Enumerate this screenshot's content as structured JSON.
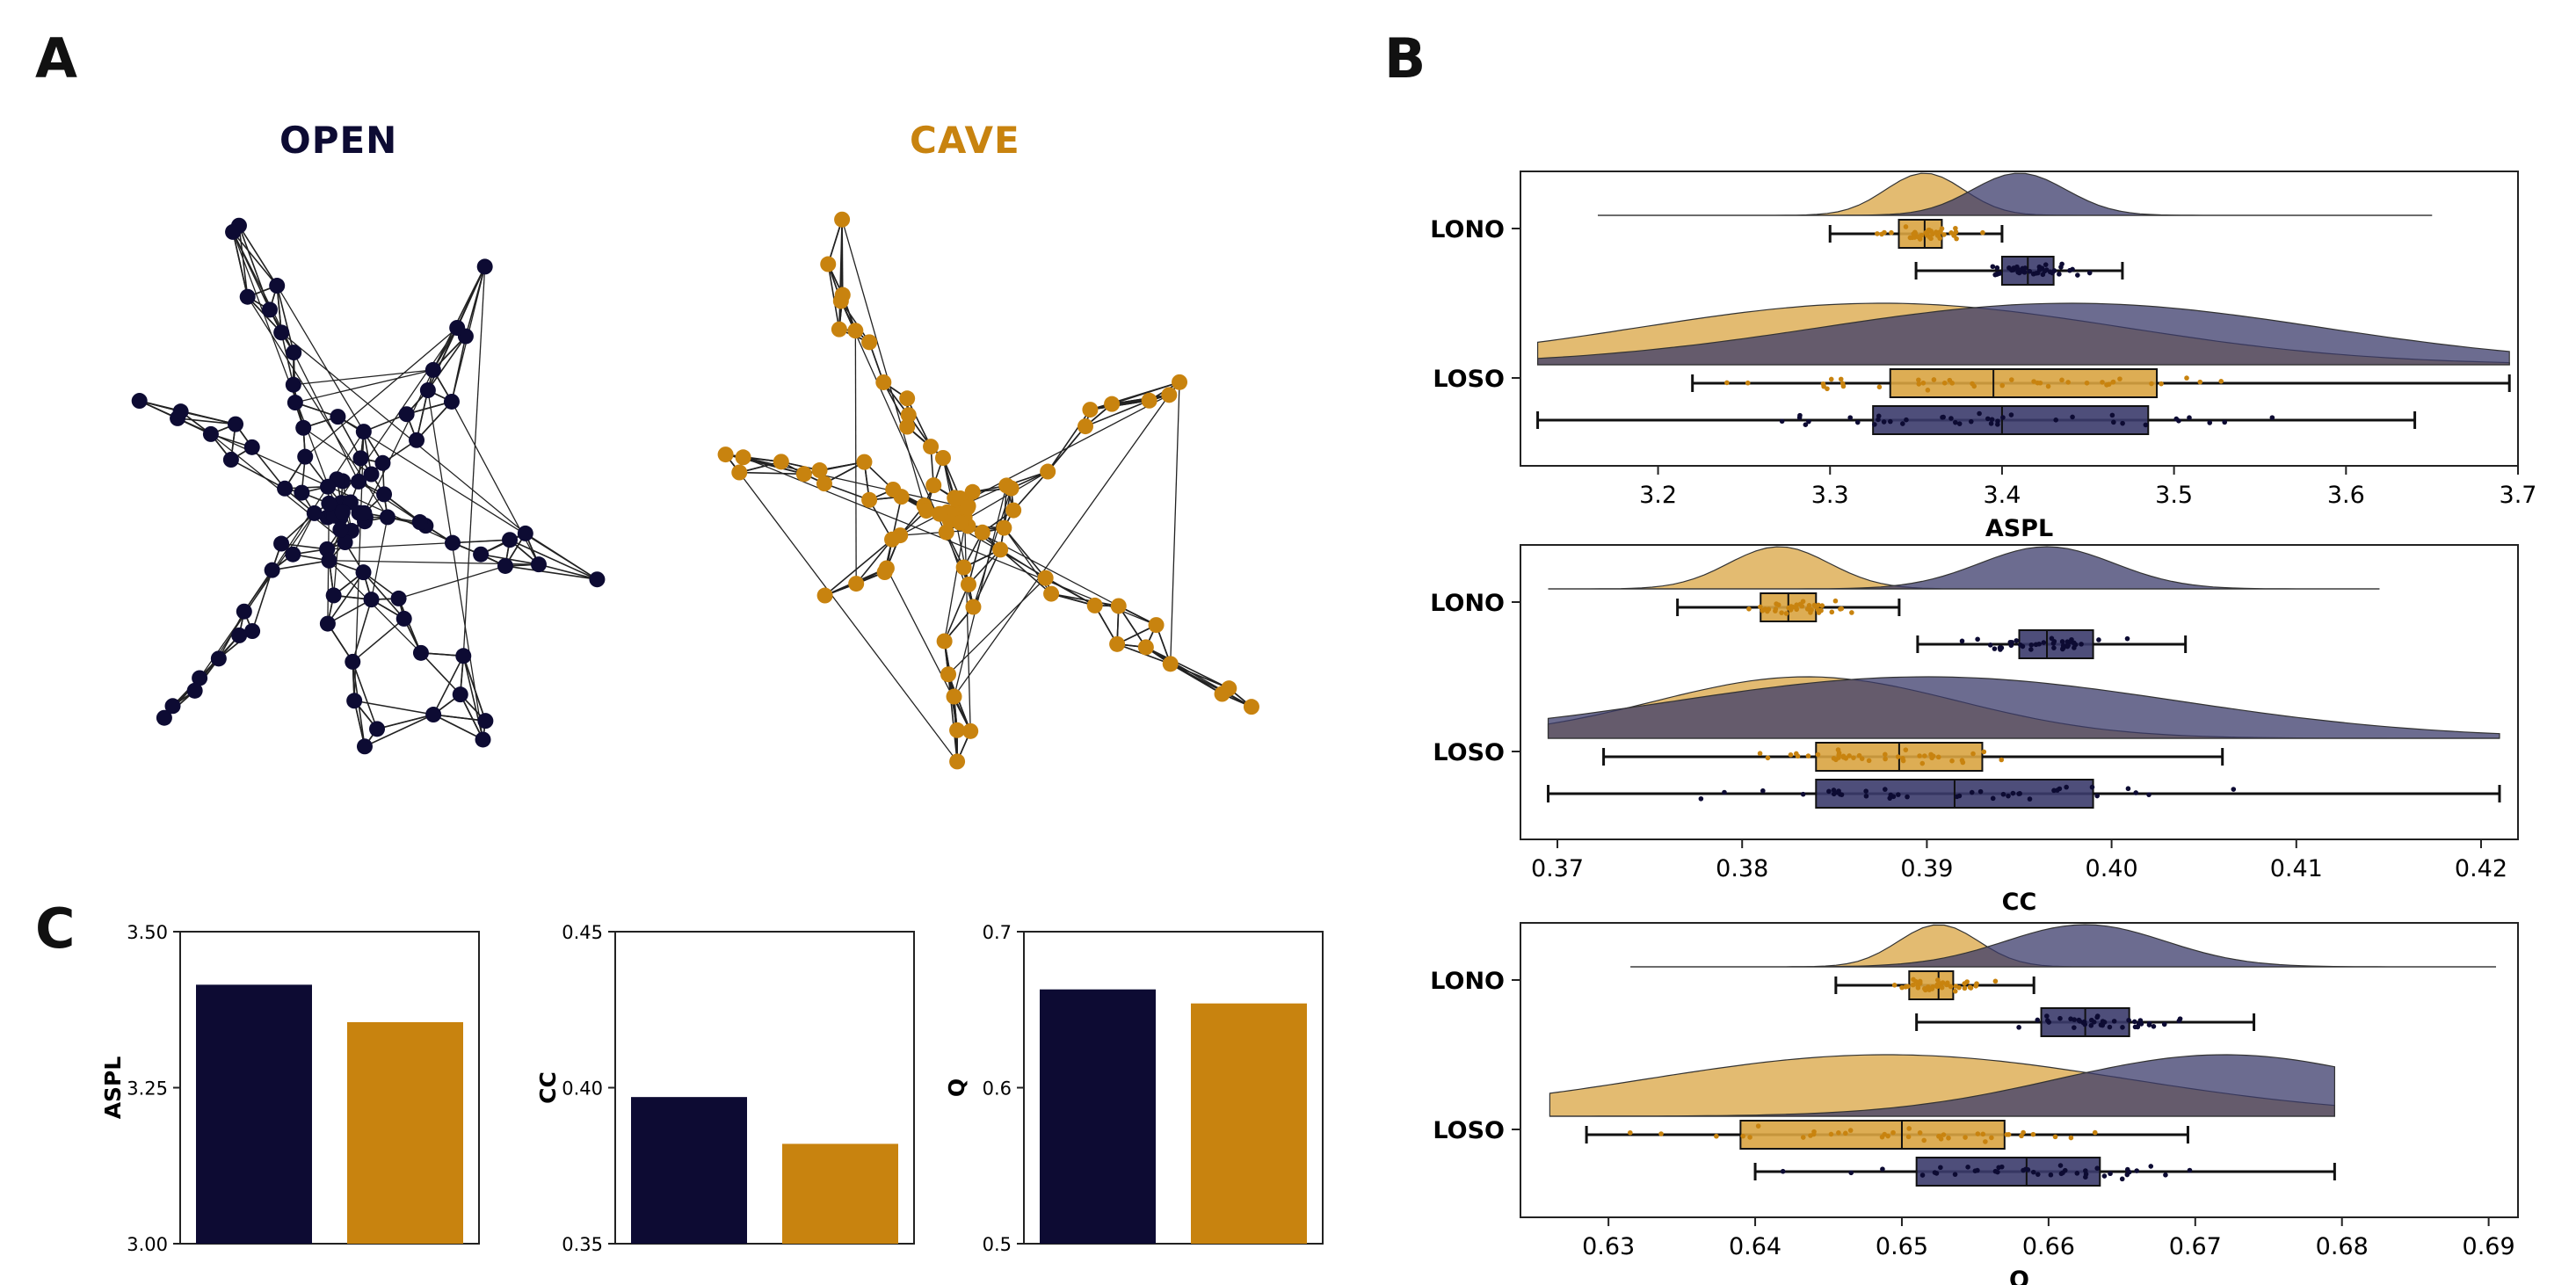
{
  "colors": {
    "open": "#0d0b33",
    "cave": "#c8830f",
    "open_fill": "#3b3b6b",
    "cave_fill": "#d9a441"
  },
  "panels": {
    "a": "A",
    "b": "B",
    "c": "C"
  },
  "networks": {
    "open_title": "OPEN",
    "cave_title": "CAVE"
  },
  "chart_data": [
    {
      "type": "raincloud",
      "panel": "B",
      "ylabel": "",
      "xlabel": "ASPL",
      "xlim": [
        3.12,
        3.7
      ],
      "ticks": [
        3.2,
        3.3,
        3.4,
        3.5,
        3.6,
        3.7
      ],
      "categories": [
        "LONO",
        "LOSO"
      ],
      "groups": [
        {
          "category": "LONO",
          "series": "CAVE",
          "min": 3.3,
          "q1": 3.34,
          "median": 3.355,
          "q3": 3.365,
          "max": 3.4,
          "density_peak": 3.355,
          "density_range": [
            3.165,
            3.65
          ]
        },
        {
          "category": "LONO",
          "series": "OPEN",
          "min": 3.35,
          "q1": 3.4,
          "median": 3.415,
          "q3": 3.43,
          "max": 3.47,
          "density_peak": 3.41,
          "density_range": [
            3.165,
            3.65
          ]
        },
        {
          "category": "LOSO",
          "series": "CAVE",
          "min": 3.22,
          "q1": 3.335,
          "median": 3.395,
          "q3": 3.49,
          "max": 3.695,
          "density_peak": 3.33,
          "density_range": [
            3.13,
            3.695
          ]
        },
        {
          "category": "LOSO",
          "series": "OPEN",
          "min": 3.13,
          "q1": 3.325,
          "median": 3.4,
          "q3": 3.485,
          "max": 3.64,
          "density_peak": 3.44,
          "density_range": [
            3.13,
            3.695
          ]
        }
      ]
    },
    {
      "type": "raincloud",
      "panel": "B",
      "ylabel": "",
      "xlabel": "CC",
      "xlim": [
        0.368,
        0.422
      ],
      "ticks": [
        0.37,
        0.38,
        0.39,
        0.4,
        0.41,
        0.42
      ],
      "ticklabels": [
        "0.37",
        "0.38",
        "0.39",
        "0.40",
        "0.41",
        "0.42"
      ],
      "categories": [
        "LONO",
        "LOSO"
      ],
      "groups": [
        {
          "category": "LONO",
          "series": "CAVE",
          "min": 0.3765,
          "q1": 0.381,
          "median": 0.3825,
          "q3": 0.384,
          "max": 0.3885,
          "density_peak": 0.382,
          "density_range": [
            0.3695,
            0.4145
          ]
        },
        {
          "category": "LONO",
          "series": "OPEN",
          "min": 0.3895,
          "q1": 0.395,
          "median": 0.3965,
          "q3": 0.399,
          "max": 0.404,
          "density_peak": 0.3965,
          "density_range": [
            0.3695,
            0.4145
          ]
        },
        {
          "category": "LOSO",
          "series": "CAVE",
          "min": 0.3725,
          "q1": 0.384,
          "median": 0.3885,
          "q3": 0.393,
          "max": 0.406,
          "density_peak": 0.3835,
          "density_range": [
            0.3695,
            0.421
          ]
        },
        {
          "category": "LOSO",
          "series": "OPEN",
          "min": 0.3695,
          "q1": 0.384,
          "median": 0.3915,
          "q3": 0.399,
          "max": 0.421,
          "density_peak": 0.39,
          "density_range": [
            0.3695,
            0.421
          ]
        }
      ]
    },
    {
      "type": "raincloud",
      "panel": "B",
      "ylabel": "",
      "xlabel": "Q",
      "xlim": [
        0.624,
        0.692
      ],
      "ticks": [
        0.63,
        0.64,
        0.65,
        0.66,
        0.67,
        0.68,
        0.69
      ],
      "categories": [
        "LONO",
        "LOSO"
      ],
      "groups": [
        {
          "category": "LONO",
          "series": "CAVE",
          "min": 0.6455,
          "q1": 0.6505,
          "median": 0.6525,
          "q3": 0.6535,
          "max": 0.659,
          "density_peak": 0.6525,
          "density_range": [
            0.6315,
            0.6905
          ]
        },
        {
          "category": "LONO",
          "series": "OPEN",
          "min": 0.651,
          "q1": 0.6595,
          "median": 0.6625,
          "q3": 0.6655,
          "max": 0.674,
          "density_peak": 0.6625,
          "density_range": [
            0.6315,
            0.6905
          ]
        },
        {
          "category": "LOSO",
          "series": "CAVE",
          "min": 0.6285,
          "q1": 0.639,
          "median": 0.65,
          "q3": 0.657,
          "max": 0.6695,
          "density_peak": 0.649,
          "density_range": [
            0.626,
            0.6795
          ]
        },
        {
          "category": "LOSO",
          "series": "OPEN",
          "min": 0.64,
          "q1": 0.651,
          "median": 0.6585,
          "q3": 0.6635,
          "max": 0.6795,
          "density_peak": 0.672,
          "density_range": [
            0.626,
            0.6795
          ]
        }
      ]
    },
    {
      "type": "bar",
      "panel": "C",
      "ylabel": "ASPL",
      "ylim": [
        3.0,
        3.5
      ],
      "ticks": [
        3.0,
        3.25,
        3.5
      ],
      "ticklabels": [
        "3.00",
        "3.25",
        "3.50"
      ],
      "categories": [
        "OPEN",
        "CAVE"
      ],
      "values": [
        3.415,
        3.355
      ]
    },
    {
      "type": "bar",
      "panel": "C",
      "ylabel": "CC",
      "ylim": [
        0.35,
        0.45
      ],
      "ticks": [
        0.35,
        0.4,
        0.45
      ],
      "ticklabels": [
        "0.35",
        "0.40",
        "0.45"
      ],
      "categories": [
        "OPEN",
        "CAVE"
      ],
      "values": [
        0.397,
        0.382
      ]
    },
    {
      "type": "bar",
      "panel": "C",
      "ylabel": "Q",
      "ylim": [
        0.5,
        0.7
      ],
      "ticks": [
        0.5,
        0.6,
        0.7
      ],
      "ticklabels": [
        "0.5",
        "0.6",
        "0.7"
      ],
      "categories": [
        "OPEN",
        "CAVE"
      ],
      "values": [
        0.663,
        0.654
      ]
    }
  ]
}
